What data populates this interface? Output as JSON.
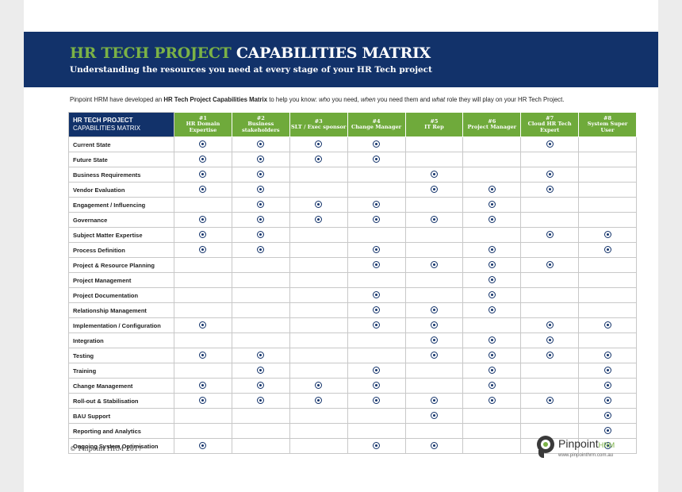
{
  "header": {
    "title_accent": "HR TECH PROJECT",
    "title_main": "CAPABILITIES MATRIX",
    "subtitle": "Understanding the resources you need at every stage of  your HR Tech project"
  },
  "intro": {
    "p1": "Pinpoint HRM have developed an ",
    "b1": "HR Tech Project Capabilities Matrix",
    "p2": " to help you know: ",
    "i1": "who",
    "p3": " you need, ",
    "i2": "when",
    "p4": " you need them and ",
    "i3": "what",
    "p5": " role they will play on your HR Tech Project."
  },
  "matrix": {
    "corner_line1": "HR TECH PROJECT",
    "corner_line2": "CAPABILITIES MATRIX",
    "columns": [
      {
        "num": "#1",
        "label": "HR Domain Expertise"
      },
      {
        "num": "#2",
        "label": "Business stakeholders"
      },
      {
        "num": "#3",
        "label": "SLT / Exec sponsor"
      },
      {
        "num": "#4",
        "label": "Change Manager"
      },
      {
        "num": "#5",
        "label": "IT Rep"
      },
      {
        "num": "#6",
        "label": "Project Manager"
      },
      {
        "num": "#7",
        "label": "Cloud HR Tech Expert"
      },
      {
        "num": "#8",
        "label": "System Super User"
      }
    ],
    "rows": [
      {
        "label": "Current State",
        "marks": [
          1,
          1,
          1,
          1,
          0,
          0,
          1,
          0
        ]
      },
      {
        "label": "Future State",
        "marks": [
          1,
          1,
          1,
          1,
          0,
          0,
          0,
          0
        ]
      },
      {
        "label": "Business Requirements",
        "marks": [
          1,
          1,
          0,
          0,
          1,
          0,
          1,
          0
        ]
      },
      {
        "label": "Vendor Evaluation",
        "marks": [
          1,
          1,
          0,
          0,
          1,
          1,
          1,
          0
        ]
      },
      {
        "label": "Engagement / Influencing",
        "marks": [
          0,
          1,
          1,
          1,
          0,
          1,
          0,
          0
        ]
      },
      {
        "label": "Governance",
        "marks": [
          1,
          1,
          1,
          1,
          1,
          1,
          0,
          0
        ]
      },
      {
        "label": "Subject Matter Expertise",
        "marks": [
          1,
          1,
          0,
          0,
          0,
          0,
          1,
          1
        ]
      },
      {
        "label": "Process Definition",
        "marks": [
          1,
          1,
          0,
          1,
          0,
          1,
          0,
          1
        ]
      },
      {
        "label": "Project & Resource Planning",
        "marks": [
          0,
          0,
          0,
          1,
          1,
          1,
          1,
          0
        ]
      },
      {
        "label": "Project Management",
        "marks": [
          0,
          0,
          0,
          0,
          0,
          1,
          0,
          0
        ]
      },
      {
        "label": "Project Documentation",
        "marks": [
          0,
          0,
          0,
          1,
          0,
          1,
          0,
          0
        ]
      },
      {
        "label": "Relationship Management",
        "marks": [
          0,
          0,
          0,
          1,
          1,
          1,
          0,
          0
        ]
      },
      {
        "label": "Implementation / Configuration",
        "marks": [
          1,
          0,
          0,
          1,
          1,
          0,
          1,
          1
        ]
      },
      {
        "label": "Integration",
        "marks": [
          0,
          0,
          0,
          0,
          1,
          1,
          1,
          0
        ]
      },
      {
        "label": "Testing",
        "marks": [
          1,
          1,
          0,
          0,
          1,
          1,
          1,
          1
        ]
      },
      {
        "label": "Training",
        "marks": [
          0,
          1,
          0,
          1,
          0,
          1,
          0,
          1
        ]
      },
      {
        "label": "Change Management",
        "marks": [
          1,
          1,
          1,
          1,
          0,
          1,
          0,
          1
        ]
      },
      {
        "label": "Roll-out & Stabilisation",
        "marks": [
          1,
          1,
          1,
          1,
          1,
          1,
          1,
          1
        ]
      },
      {
        "label": "BAU Support",
        "marks": [
          0,
          0,
          0,
          0,
          1,
          0,
          0,
          1
        ]
      },
      {
        "label": "Reporting and Analytics",
        "marks": [
          0,
          0,
          0,
          0,
          0,
          0,
          0,
          1
        ]
      },
      {
        "label": "Ongoing System Optimisation",
        "marks": [
          1,
          0,
          0,
          1,
          1,
          0,
          0,
          1
        ]
      }
    ]
  },
  "footer": {
    "copyright": "© Pinpoint HRM 2017",
    "logo_name": "Pinpoint",
    "logo_suffix": "HRM",
    "logo_url": "www.pinpointhrm.com.au"
  },
  "icons": {
    "mark": "radio-dot-icon",
    "logo": "pinpoint-logo-icon"
  },
  "colors": {
    "navy": "#12326a",
    "green": "#6faa3b",
    "accent": "#7bb246"
  }
}
